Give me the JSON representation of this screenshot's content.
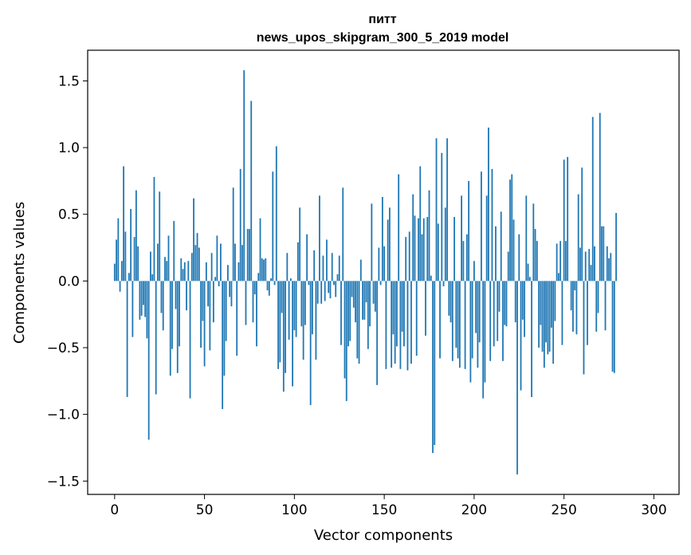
{
  "chart_data": {
    "type": "bar",
    "title": "питт",
    "subtitle": "news_upos_skipgram_300_5_2019 model",
    "xlabel": "Vector components",
    "ylabel": "Components values",
    "xlim": [
      -15,
      314
    ],
    "ylim": [
      -1.6,
      1.73
    ],
    "xticks": [
      0,
      50,
      100,
      150,
      200,
      250,
      300
    ],
    "yticks": [
      -1.5,
      -1.0,
      -0.5,
      0.0,
      0.5,
      1.0,
      1.5
    ],
    "ytick_labels": [
      "−1.5",
      "−1.0",
      "−0.5",
      "0.0",
      "0.5",
      "1.0",
      "1.5"
    ],
    "bar_color": "#1f77b4",
    "grid": false,
    "values": [
      0.13,
      0.31,
      0.47,
      -0.08,
      0.15,
      0.86,
      0.37,
      -0.87,
      0.06,
      0.54,
      -0.42,
      0.33,
      0.68,
      0.26,
      -0.29,
      -0.26,
      -0.18,
      -0.27,
      -0.43,
      -1.19,
      0.22,
      0.05,
      0.78,
      -0.85,
      0.28,
      0.67,
      -0.24,
      -0.37,
      0.18,
      0.15,
      0.34,
      -0.71,
      -0.51,
      0.45,
      -0.21,
      -0.69,
      -0.49,
      0.17,
      0.09,
      0.14,
      -0.22,
      0.15,
      -0.88,
      0.21,
      0.62,
      0.27,
      0.36,
      0.25,
      -0.5,
      -0.3,
      -0.64,
      0.14,
      -0.19,
      -0.52,
      0.21,
      -0.31,
      0.03,
      0.34,
      -0.04,
      0.28,
      -0.96,
      -0.71,
      -0.45,
      0.12,
      -0.12,
      -0.19,
      0.7,
      0.28,
      -0.56,
      0.14,
      0.84,
      0.27,
      1.58,
      -0.33,
      0.39,
      0.39,
      1.35,
      -0.31,
      -0.1,
      -0.49,
      0.06,
      0.47,
      0.17,
      0.16,
      0.17,
      -0.07,
      -0.11,
      0.02,
      0.82,
      -0.03,
      1.01,
      -0.66,
      -0.61,
      -0.24,
      -0.83,
      -0.69,
      0.21,
      -0.44,
      0.02,
      -0.79,
      -0.37,
      -0.42,
      0.29,
      0.55,
      -0.34,
      -0.59,
      -0.33,
      0.35,
      -0.03,
      -0.93,
      -0.4,
      0.23,
      -0.59,
      -0.17,
      0.64,
      -0.17,
      0.19,
      -0.15,
      0.31,
      -0.09,
      -0.13,
      0.21,
      -0.03,
      -0.12,
      0.05,
      0.19,
      -0.48,
      0.7,
      -0.73,
      -0.9,
      -0.49,
      -0.45,
      -0.12,
      -0.2,
      -0.31,
      -0.58,
      -0.62,
      0.16,
      -0.29,
      -0.29,
      -0.16,
      -0.51,
      -0.34,
      0.58,
      -0.17,
      -0.23,
      -0.78,
      0.25,
      -0.03,
      0.63,
      0.26,
      -0.66,
      0.46,
      0.55,
      -0.65,
      -0.4,
      -0.62,
      -0.49,
      0.8,
      -0.66,
      -0.38,
      -0.49,
      0.33,
      -0.67,
      0.37,
      -0.62,
      0.65,
      0.49,
      -0.56,
      0.47,
      0.86,
      0.35,
      0.47,
      -0.41,
      0.48,
      0.68,
      0.04,
      -1.29,
      -1.23,
      1.07,
      0.43,
      -0.58,
      0.96,
      -0.04,
      0.55,
      1.07,
      -0.26,
      -0.31,
      -0.6,
      0.48,
      -0.5,
      -0.58,
      -0.65,
      0.64,
      0.3,
      -0.66,
      0.35,
      0.75,
      -0.76,
      -0.58,
      0.15,
      -0.39,
      -0.65,
      -0.46,
      0.82,
      -0.88,
      -0.76,
      0.64,
      1.15,
      -0.6,
      0.84,
      -0.49,
      0.41,
      -0.45,
      -0.23,
      0.52,
      -0.6,
      -0.33,
      -0.34,
      0.22,
      0.76,
      0.8,
      0.46,
      -0.31,
      -1.45,
      0.35,
      -0.82,
      -0.29,
      -0.42,
      0.64,
      0.13,
      0.03,
      -0.87,
      0.58,
      0.39,
      0.3,
      -0.5,
      -0.33,
      -0.53,
      -0.65,
      -0.46,
      -0.55,
      -0.53,
      -0.35,
      -0.62,
      -0.3,
      0.28,
      0.06,
      0.3,
      -0.48,
      0.91,
      0.3,
      0.93,
      0.0,
      -0.22,
      -0.38,
      -0.07,
      -0.4,
      0.65,
      0.25,
      0.85,
      -0.7,
      0.22,
      -0.48,
      0.24,
      0.12,
      1.23,
      0.26,
      -0.38,
      -0.24,
      1.26,
      0.41,
      0.41,
      -0.37,
      0.26,
      0.17,
      0.21,
      -0.68,
      -0.69,
      0.51
    ]
  }
}
